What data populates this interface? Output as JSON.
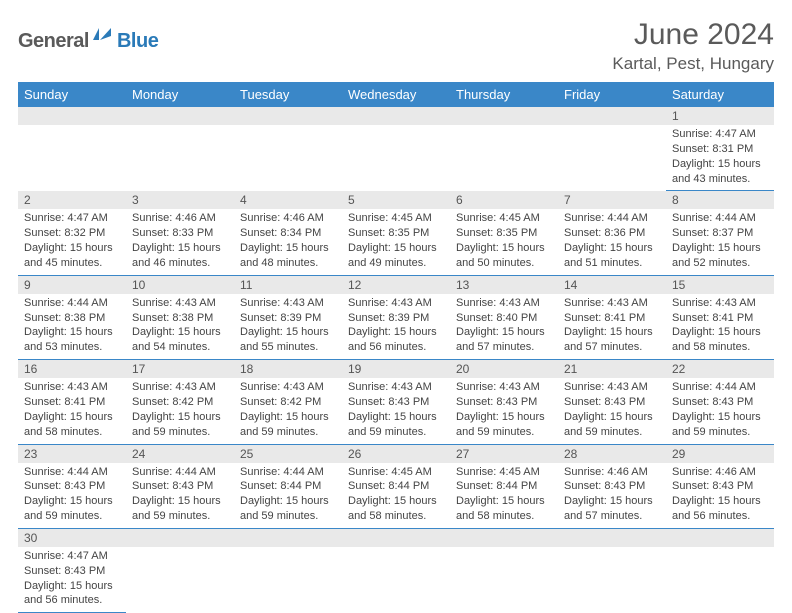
{
  "brand": {
    "name_part1": "General",
    "name_part2": "Blue"
  },
  "title": {
    "month": "June 2024",
    "location": "Kartal, Pest, Hungary"
  },
  "colors": {
    "header_bg": "#3a87c8",
    "header_text": "#ffffff",
    "daynum_bg": "#e9e9e9",
    "rule": "#3a87c8",
    "text": "#444444",
    "brand_gray": "#5a5a5a",
    "brand_blue": "#2a7ab8"
  },
  "weekdays": [
    "Sunday",
    "Monday",
    "Tuesday",
    "Wednesday",
    "Thursday",
    "Friday",
    "Saturday"
  ],
  "weeks": [
    [
      null,
      null,
      null,
      null,
      null,
      null,
      {
        "n": "1",
        "sr": "4:47 AM",
        "ss": "8:31 PM",
        "dl": "15 hours and 43 minutes."
      }
    ],
    [
      {
        "n": "2",
        "sr": "4:47 AM",
        "ss": "8:32 PM",
        "dl": "15 hours and 45 minutes."
      },
      {
        "n": "3",
        "sr": "4:46 AM",
        "ss": "8:33 PM",
        "dl": "15 hours and 46 minutes."
      },
      {
        "n": "4",
        "sr": "4:46 AM",
        "ss": "8:34 PM",
        "dl": "15 hours and 48 minutes."
      },
      {
        "n": "5",
        "sr": "4:45 AM",
        "ss": "8:35 PM",
        "dl": "15 hours and 49 minutes."
      },
      {
        "n": "6",
        "sr": "4:45 AM",
        "ss": "8:35 PM",
        "dl": "15 hours and 50 minutes."
      },
      {
        "n": "7",
        "sr": "4:44 AM",
        "ss": "8:36 PM",
        "dl": "15 hours and 51 minutes."
      },
      {
        "n": "8",
        "sr": "4:44 AM",
        "ss": "8:37 PM",
        "dl": "15 hours and 52 minutes."
      }
    ],
    [
      {
        "n": "9",
        "sr": "4:44 AM",
        "ss": "8:38 PM",
        "dl": "15 hours and 53 minutes."
      },
      {
        "n": "10",
        "sr": "4:43 AM",
        "ss": "8:38 PM",
        "dl": "15 hours and 54 minutes."
      },
      {
        "n": "11",
        "sr": "4:43 AM",
        "ss": "8:39 PM",
        "dl": "15 hours and 55 minutes."
      },
      {
        "n": "12",
        "sr": "4:43 AM",
        "ss": "8:39 PM",
        "dl": "15 hours and 56 minutes."
      },
      {
        "n": "13",
        "sr": "4:43 AM",
        "ss": "8:40 PM",
        "dl": "15 hours and 57 minutes."
      },
      {
        "n": "14",
        "sr": "4:43 AM",
        "ss": "8:41 PM",
        "dl": "15 hours and 57 minutes."
      },
      {
        "n": "15",
        "sr": "4:43 AM",
        "ss": "8:41 PM",
        "dl": "15 hours and 58 minutes."
      }
    ],
    [
      {
        "n": "16",
        "sr": "4:43 AM",
        "ss": "8:41 PM",
        "dl": "15 hours and 58 minutes."
      },
      {
        "n": "17",
        "sr": "4:43 AM",
        "ss": "8:42 PM",
        "dl": "15 hours and 59 minutes."
      },
      {
        "n": "18",
        "sr": "4:43 AM",
        "ss": "8:42 PM",
        "dl": "15 hours and 59 minutes."
      },
      {
        "n": "19",
        "sr": "4:43 AM",
        "ss": "8:43 PM",
        "dl": "15 hours and 59 minutes."
      },
      {
        "n": "20",
        "sr": "4:43 AM",
        "ss": "8:43 PM",
        "dl": "15 hours and 59 minutes."
      },
      {
        "n": "21",
        "sr": "4:43 AM",
        "ss": "8:43 PM",
        "dl": "15 hours and 59 minutes."
      },
      {
        "n": "22",
        "sr": "4:44 AM",
        "ss": "8:43 PM",
        "dl": "15 hours and 59 minutes."
      }
    ],
    [
      {
        "n": "23",
        "sr": "4:44 AM",
        "ss": "8:43 PM",
        "dl": "15 hours and 59 minutes."
      },
      {
        "n": "24",
        "sr": "4:44 AM",
        "ss": "8:43 PM",
        "dl": "15 hours and 59 minutes."
      },
      {
        "n": "25",
        "sr": "4:44 AM",
        "ss": "8:44 PM",
        "dl": "15 hours and 59 minutes."
      },
      {
        "n": "26",
        "sr": "4:45 AM",
        "ss": "8:44 PM",
        "dl": "15 hours and 58 minutes."
      },
      {
        "n": "27",
        "sr": "4:45 AM",
        "ss": "8:44 PM",
        "dl": "15 hours and 58 minutes."
      },
      {
        "n": "28",
        "sr": "4:46 AM",
        "ss": "8:43 PM",
        "dl": "15 hours and 57 minutes."
      },
      {
        "n": "29",
        "sr": "4:46 AM",
        "ss": "8:43 PM",
        "dl": "15 hours and 56 minutes."
      }
    ],
    [
      {
        "n": "30",
        "sr": "4:47 AM",
        "ss": "8:43 PM",
        "dl": "15 hours and 56 minutes."
      },
      null,
      null,
      null,
      null,
      null,
      null
    ]
  ],
  "labels": {
    "sunrise": "Sunrise:",
    "sunset": "Sunset:",
    "daylight": "Daylight:"
  }
}
